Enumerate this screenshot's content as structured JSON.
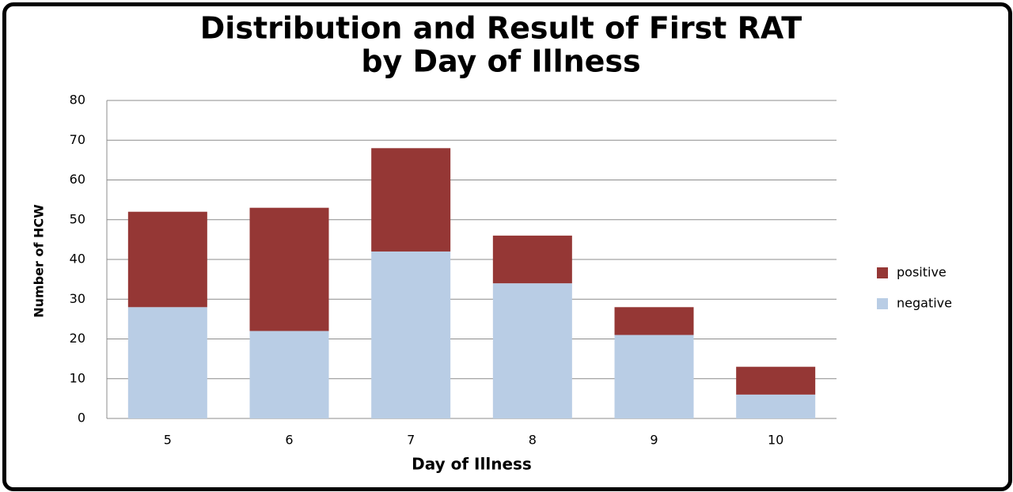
{
  "chart_data": {
    "type": "stacked_bar",
    "title": [
      "Distribution and Result of First RAT",
      "by Day of Illness"
    ],
    "x_label": "Day of Illness",
    "y_label": "Number of HCW",
    "categories": [
      "5",
      "6",
      "7",
      "8",
      "9",
      "10"
    ],
    "series": [
      {
        "name": "negative",
        "color": "#b9cde5",
        "values": [
          28,
          22,
          42,
          34,
          21,
          6
        ]
      },
      {
        "name": "positive",
        "color": "#953735",
        "values": [
          24,
          31,
          26,
          12,
          7,
          7
        ]
      }
    ],
    "ylim": [
      0,
      80
    ],
    "yticks": [
      0,
      10,
      20,
      30,
      40,
      50,
      60,
      70,
      80
    ],
    "grid": true,
    "legend": "right"
  }
}
